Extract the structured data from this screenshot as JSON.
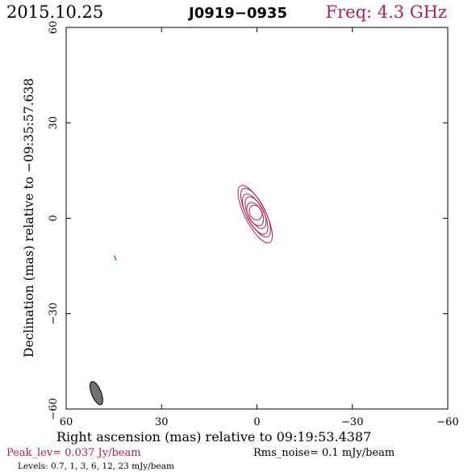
{
  "header": {
    "date": "2015.10.25",
    "source": "J0919−0935",
    "freq": "Freq: 4.3 GHz"
  },
  "colors": {
    "contour": "#b0204a",
    "beam": "#707070",
    "axes": "#000000"
  },
  "chart_data": {
    "type": "contour",
    "xlabel": "Right ascension (mas) relative to 09:19:53.4387",
    "ylabel": "Declination (mas) relative to −09:35:57.638",
    "xlim": [
      60,
      -60
    ],
    "ylim": [
      -60,
      60
    ],
    "xticks": [
      60,
      30,
      0,
      -30,
      -60
    ],
    "yticks": [
      -60,
      -30,
      0,
      30,
      60
    ],
    "xtick_labels": [
      "60",
      "30",
      "0",
      "−30",
      "−60"
    ],
    "ytick_labels": [
      "−60",
      "−30",
      "0",
      "30",
      "60"
    ],
    "peak": "Peak_lev=  0.037 Jy/beam",
    "rms": "Rms_noise=  0.1 mJy/beam",
    "levels": "Levels: 0.7,    1,    3,    6,   12,   23  mJy/beam",
    "contour_levels_mJy": [
      0.7,
      1,
      3,
      6,
      12,
      23
    ],
    "source_component": {
      "ra": 0.5,
      "dec": 1.5,
      "angle_deg": 27,
      "major": 20,
      "minor": 6.5
    },
    "noise_feature": {
      "ra": 44.5,
      "dec": -12.5
    },
    "beam": {
      "ra": 50.5,
      "dec": -55,
      "major": 7.8,
      "minor": 3,
      "angle_deg": 22
    }
  }
}
